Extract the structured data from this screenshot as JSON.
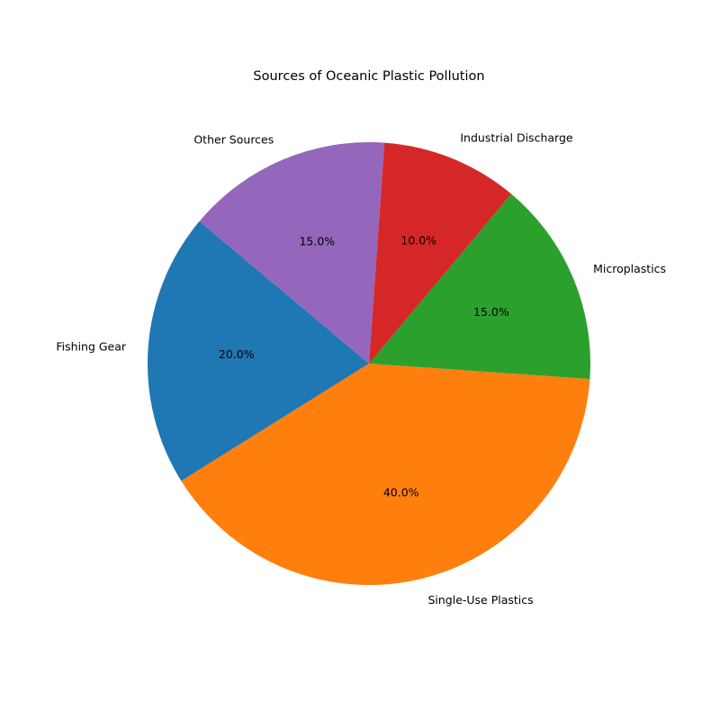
{
  "chart_data": {
    "type": "pie",
    "title": "Sources of Oceanic Plastic Pollution",
    "slices": [
      {
        "label": "Fishing Gear",
        "value": 20,
        "pct_label": "20.0%",
        "color": "#1f77b4"
      },
      {
        "label": "Single-Use Plastics",
        "value": 40,
        "pct_label": "40.0%",
        "color": "#ff7f0e"
      },
      {
        "label": "Microplastics",
        "value": 15,
        "pct_label": "15.0%",
        "color": "#2ca02c"
      },
      {
        "label": "Industrial Discharge",
        "value": 10,
        "pct_label": "10.0%",
        "color": "#d62728"
      },
      {
        "label": "Other Sources",
        "value": 15,
        "pct_label": "15.0%",
        "color": "#9467bd"
      }
    ],
    "start_angle_deg": 140,
    "direction": "counterclockwise",
    "legend": "none"
  }
}
